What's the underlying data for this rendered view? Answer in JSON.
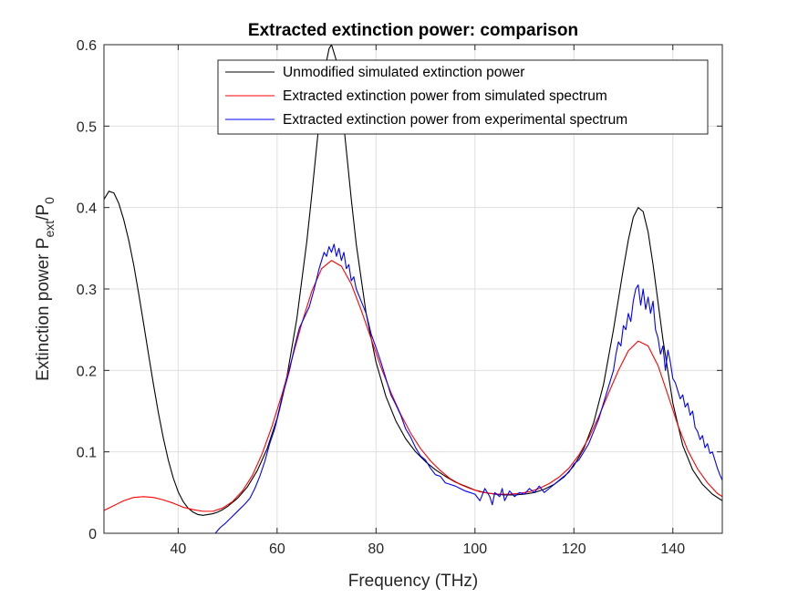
{
  "chart_data": {
    "type": "line",
    "title": "Extracted extinction power: comparison",
    "xlabel": "Frequency (THz)",
    "ylabel": {
      "prefix": "Extinction power P",
      "sub1": "ext",
      "mid": "/P",
      "sub2": "0"
    },
    "xlim": [
      25,
      150
    ],
    "ylim": [
      0,
      0.6
    ],
    "xticks": [
      40,
      60,
      80,
      100,
      120,
      140
    ],
    "yticks": [
      0,
      0.1,
      0.2,
      0.3,
      0.4,
      0.5,
      0.6
    ],
    "xtick_labels": [
      "40",
      "60",
      "80",
      "100",
      "120",
      "140"
    ],
    "ytick_labels": [
      "0",
      "0.1",
      "0.2",
      "0.3",
      "0.4",
      "0.5",
      "0.6"
    ],
    "grid": true,
    "legend_position": "top-right",
    "series": [
      {
        "name": "Unmodified simulated extinction power",
        "color": "#000000",
        "points": [
          [
            25,
            0.41
          ],
          [
            26,
            0.42
          ],
          [
            27,
            0.418
          ],
          [
            28,
            0.405
          ],
          [
            29,
            0.385
          ],
          [
            30,
            0.36
          ],
          [
            31,
            0.33
          ],
          [
            32,
            0.295
          ],
          [
            33,
            0.258
          ],
          [
            34,
            0.22
          ],
          [
            35,
            0.183
          ],
          [
            36,
            0.148
          ],
          [
            37,
            0.117
          ],
          [
            38,
            0.09
          ],
          [
            39,
            0.068
          ],
          [
            40,
            0.051
          ],
          [
            41,
            0.039
          ],
          [
            42,
            0.031
          ],
          [
            43,
            0.026
          ],
          [
            44,
            0.023
          ],
          [
            45,
            0.022
          ],
          [
            46,
            0.023
          ],
          [
            47,
            0.024
          ],
          [
            48,
            0.026
          ],
          [
            49,
            0.029
          ],
          [
            50,
            0.033
          ],
          [
            52,
            0.043
          ],
          [
            54,
            0.057
          ],
          [
            56,
            0.077
          ],
          [
            58,
            0.104
          ],
          [
            60,
            0.141
          ],
          [
            62,
            0.193
          ],
          [
            64,
            0.264
          ],
          [
            66,
            0.358
          ],
          [
            67,
            0.415
          ],
          [
            68,
            0.475
          ],
          [
            69,
            0.535
          ],
          [
            70,
            0.58
          ],
          [
            70.5,
            0.595
          ],
          [
            71,
            0.6
          ],
          [
            72,
            0.58
          ],
          [
            73,
            0.53
          ],
          [
            74,
            0.47
          ],
          [
            75,
            0.41
          ],
          [
            76,
            0.355
          ],
          [
            78,
            0.27
          ],
          [
            80,
            0.21
          ],
          [
            82,
            0.168
          ],
          [
            84,
            0.138
          ],
          [
            86,
            0.116
          ],
          [
            88,
            0.1
          ],
          [
            90,
            0.088
          ],
          [
            92,
            0.078
          ],
          [
            94,
            0.07
          ],
          [
            96,
            0.063
          ],
          [
            98,
            0.058
          ],
          [
            100,
            0.053
          ],
          [
            102,
            0.05
          ],
          [
            104,
            0.048
          ],
          [
            106,
            0.047
          ],
          [
            108,
            0.047
          ],
          [
            110,
            0.048
          ],
          [
            112,
            0.05
          ],
          [
            114,
            0.054
          ],
          [
            116,
            0.06
          ],
          [
            118,
            0.069
          ],
          [
            120,
            0.083
          ],
          [
            122,
            0.104
          ],
          [
            124,
            0.136
          ],
          [
            126,
            0.183
          ],
          [
            128,
            0.25
          ],
          [
            130,
            0.325
          ],
          [
            131,
            0.36
          ],
          [
            132,
            0.388
          ],
          [
            133,
            0.4
          ],
          [
            134,
            0.395
          ],
          [
            135,
            0.37
          ],
          [
            136,
            0.33
          ],
          [
            138,
            0.238
          ],
          [
            140,
            0.16
          ],
          [
            142,
            0.108
          ],
          [
            144,
            0.078
          ],
          [
            146,
            0.06
          ],
          [
            148,
            0.048
          ],
          [
            150,
            0.04
          ]
        ]
      },
      {
        "name": "Extracted extinction power from simulated spectrum",
        "color": "#ff0000",
        "points": [
          [
            25,
            0.028
          ],
          [
            27,
            0.034
          ],
          [
            29,
            0.04
          ],
          [
            31,
            0.044
          ],
          [
            33,
            0.045
          ],
          [
            35,
            0.044
          ],
          [
            37,
            0.041
          ],
          [
            39,
            0.037
          ],
          [
            41,
            0.032
          ],
          [
            43,
            0.029
          ],
          [
            45,
            0.027
          ],
          [
            47,
            0.027
          ],
          [
            49,
            0.031
          ],
          [
            51,
            0.039
          ],
          [
            53,
            0.052
          ],
          [
            55,
            0.071
          ],
          [
            57,
            0.098
          ],
          [
            59,
            0.132
          ],
          [
            61,
            0.171
          ],
          [
            63,
            0.214
          ],
          [
            65,
            0.258
          ],
          [
            67,
            0.297
          ],
          [
            69,
            0.325
          ],
          [
            71,
            0.335
          ],
          [
            73,
            0.328
          ],
          [
            75,
            0.306
          ],
          [
            77,
            0.274
          ],
          [
            79,
            0.239
          ],
          [
            81,
            0.204
          ],
          [
            83,
            0.173
          ],
          [
            85,
            0.146
          ],
          [
            87,
            0.123
          ],
          [
            89,
            0.104
          ],
          [
            91,
            0.089
          ],
          [
            93,
            0.077
          ],
          [
            95,
            0.067
          ],
          [
            97,
            0.06
          ],
          [
            99,
            0.055
          ],
          [
            101,
            0.051
          ],
          [
            103,
            0.049
          ],
          [
            105,
            0.048
          ],
          [
            107,
            0.048
          ],
          [
            109,
            0.049
          ],
          [
            111,
            0.051
          ],
          [
            113,
            0.055
          ],
          [
            115,
            0.061
          ],
          [
            117,
            0.069
          ],
          [
            119,
            0.08
          ],
          [
            121,
            0.096
          ],
          [
            123,
            0.117
          ],
          [
            125,
            0.143
          ],
          [
            127,
            0.172
          ],
          [
            129,
            0.2
          ],
          [
            131,
            0.224
          ],
          [
            133,
            0.236
          ],
          [
            135,
            0.23
          ],
          [
            137,
            0.206
          ],
          [
            139,
            0.17
          ],
          [
            141,
            0.133
          ],
          [
            143,
            0.102
          ],
          [
            145,
            0.079
          ],
          [
            147,
            0.062
          ],
          [
            149,
            0.049
          ],
          [
            150,
            0.045
          ]
        ]
      },
      {
        "name": "Extracted extinction power from experimental spectrum",
        "color": "#0000ff",
        "points": [
          [
            47.5,
            0.0
          ],
          [
            48.5,
            0.007
          ],
          [
            49.5,
            0.012
          ],
          [
            50.5,
            0.018
          ],
          [
            51.5,
            0.024
          ],
          [
            52.5,
            0.03
          ],
          [
            53.5,
            0.036
          ],
          [
            54.5,
            0.043
          ],
          [
            55.5,
            0.055
          ],
          [
            56.5,
            0.07
          ],
          [
            57.5,
            0.088
          ],
          [
            58.5,
            0.11
          ],
          [
            59.5,
            0.128
          ],
          [
            60.5,
            0.152
          ],
          [
            61.5,
            0.178
          ],
          [
            62.5,
            0.2
          ],
          [
            63.5,
            0.228
          ],
          [
            64.5,
            0.252
          ],
          [
            65.5,
            0.265
          ],
          [
            66.5,
            0.278
          ],
          [
            67.5,
            0.3
          ],
          [
            68.5,
            0.325
          ],
          [
            69.5,
            0.345
          ],
          [
            70,
            0.34
          ],
          [
            70.5,
            0.352
          ],
          [
            71,
            0.345
          ],
          [
            71.5,
            0.355
          ],
          [
            72,
            0.34
          ],
          [
            72.5,
            0.35
          ],
          [
            73,
            0.335
          ],
          [
            73.5,
            0.345
          ],
          [
            74,
            0.325
          ],
          [
            74.5,
            0.33
          ],
          [
            75,
            0.31
          ],
          [
            75.5,
            0.315
          ],
          [
            76,
            0.3
          ],
          [
            77,
            0.285
          ],
          [
            78,
            0.27
          ],
          [
            79,
            0.245
          ],
          [
            80,
            0.228
          ],
          [
            81,
            0.21
          ],
          [
            82,
            0.19
          ],
          [
            83,
            0.17
          ],
          [
            84,
            0.158
          ],
          [
            85,
            0.145
          ],
          [
            86,
            0.128
          ],
          [
            87,
            0.118
          ],
          [
            88,
            0.105
          ],
          [
            89,
            0.095
          ],
          [
            90,
            0.09
          ],
          [
            91,
            0.08
          ],
          [
            92,
            0.072
          ],
          [
            93,
            0.07
          ],
          [
            94,
            0.062
          ],
          [
            95,
            0.06
          ],
          [
            96,
            0.058
          ],
          [
            97,
            0.055
          ],
          [
            98,
            0.052
          ],
          [
            99,
            0.05
          ],
          [
            100,
            0.048
          ],
          [
            101,
            0.04
          ],
          [
            102,
            0.055
          ],
          [
            103,
            0.045
          ],
          [
            103.5,
            0.035
          ],
          [
            104,
            0.05
          ],
          [
            105,
            0.045
          ],
          [
            105.5,
            0.055
          ],
          [
            106,
            0.04
          ],
          [
            107,
            0.052
          ],
          [
            108,
            0.045
          ],
          [
            109,
            0.05
          ],
          [
            110,
            0.048
          ],
          [
            111,
            0.055
          ],
          [
            112,
            0.05
          ],
          [
            113,
            0.058
          ],
          [
            114,
            0.05
          ],
          [
            115,
            0.055
          ],
          [
            116,
            0.06
          ],
          [
            117,
            0.065
          ],
          [
            118,
            0.07
          ],
          [
            119,
            0.075
          ],
          [
            120,
            0.085
          ],
          [
            121,
            0.09
          ],
          [
            122,
            0.1
          ],
          [
            123,
            0.11
          ],
          [
            124,
            0.125
          ],
          [
            125,
            0.14
          ],
          [
            126,
            0.16
          ],
          [
            127,
            0.18
          ],
          [
            128,
            0.2
          ],
          [
            128.5,
            0.22
          ],
          [
            129,
            0.235
          ],
          [
            129.5,
            0.23
          ],
          [
            130,
            0.255
          ],
          [
            130.5,
            0.25
          ],
          [
            131,
            0.27
          ],
          [
            131.5,
            0.26
          ],
          [
            132,
            0.285
          ],
          [
            132.5,
            0.3
          ],
          [
            133,
            0.305
          ],
          [
            133.5,
            0.28
          ],
          [
            134,
            0.3
          ],
          [
            134.5,
            0.275
          ],
          [
            135,
            0.29
          ],
          [
            135.5,
            0.27
          ],
          [
            136,
            0.285
          ],
          [
            136.5,
            0.25
          ],
          [
            137,
            0.24
          ],
          [
            137.5,
            0.22
          ],
          [
            138,
            0.23
          ],
          [
            138.5,
            0.2
          ],
          [
            139,
            0.225
          ],
          [
            139.5,
            0.21
          ],
          [
            140,
            0.19
          ],
          [
            140.5,
            0.185
          ],
          [
            141,
            0.175
          ],
          [
            141.5,
            0.165
          ],
          [
            142,
            0.17
          ],
          [
            142.5,
            0.155
          ],
          [
            143,
            0.16
          ],
          [
            143.5,
            0.145
          ],
          [
            144,
            0.15
          ],
          [
            144.5,
            0.13
          ],
          [
            145,
            0.125
          ],
          [
            145.5,
            0.115
          ],
          [
            146,
            0.12
          ],
          [
            146.5,
            0.105
          ],
          [
            147,
            0.11
          ],
          [
            147.5,
            0.098
          ],
          [
            148,
            0.1
          ],
          [
            148.5,
            0.09
          ],
          [
            149,
            0.08
          ],
          [
            149.5,
            0.072
          ],
          [
            150,
            0.065
          ]
        ]
      }
    ]
  }
}
